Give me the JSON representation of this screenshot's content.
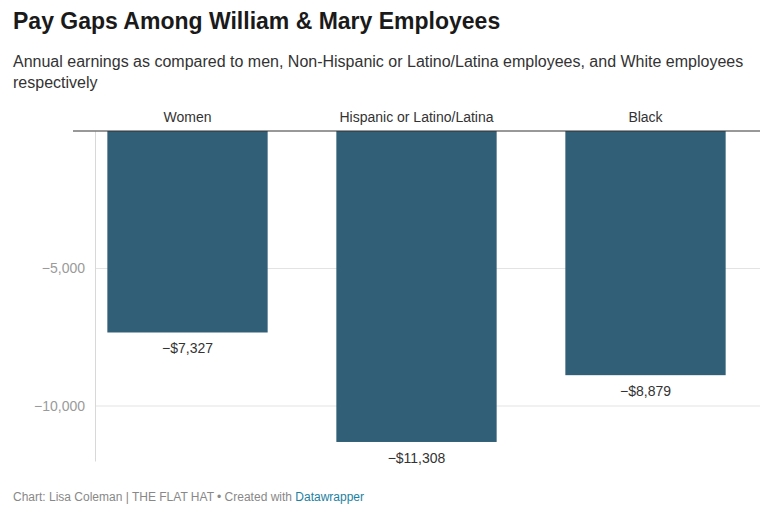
{
  "chart_data": {
    "type": "bar",
    "title": "Pay Gaps Among William & Mary Employees",
    "subtitle": "Annual earnings as compared to men, Non-Hispanic or Latino/Latina employees, and White employees respectively",
    "categories": [
      "Women",
      "Hispanic or Latino/Latina",
      "Black"
    ],
    "values": [
      -7327,
      -11308,
      -8879
    ],
    "value_labels": [
      "−$7,327",
      "−$11,308",
      "−$8,879"
    ],
    "data_labels": true,
    "color": "#305f77",
    "ylim": [
      -12000,
      0
    ],
    "yticks": [
      {
        "value": -10000,
        "label": "−10,000"
      },
      {
        "value": -5000,
        "label": "−5,000"
      }
    ],
    "grid": true,
    "footer": "Chart: Lisa Coleman | THE FLAT HAT • Created with",
    "footer_link": "Datawrapper"
  }
}
